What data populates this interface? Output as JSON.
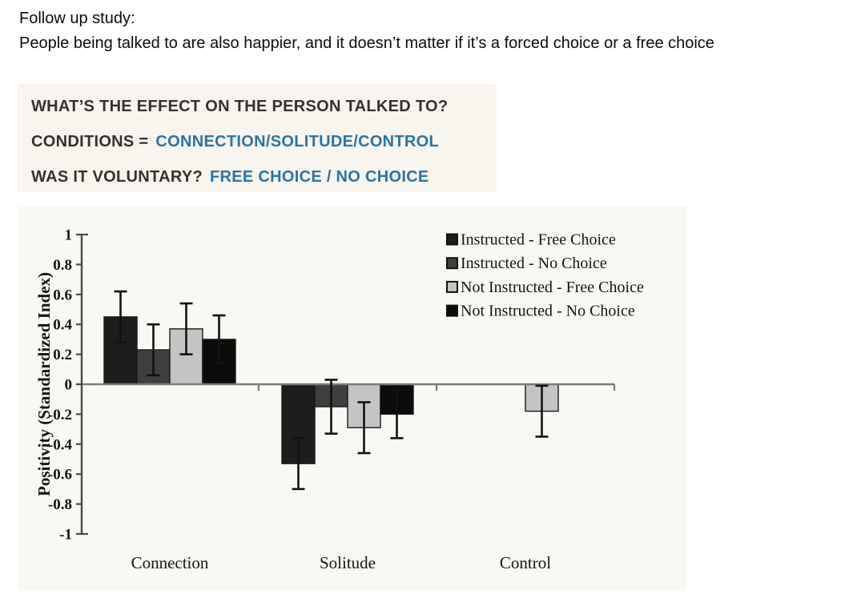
{
  "intro": {
    "line1": "Follow up study:",
    "line2": "People being talked to are also happier, and it doesn’t matter if it’s a forced choice or a free choice"
  },
  "info_box": {
    "line1_dark": "WHAT’S THE EFFECT ON THE PERSON TALKED TO?",
    "line2_dark": "CONDITIONS =",
    "line2_blue": "CONNECTION/SOLITUDE/CONTROL",
    "line3_dark": "WAS IT VOLUNTARY?",
    "line3_blue": "FREE CHOICE / NO CHOICE"
  },
  "colors": {
    "accent_blue": "#2d73a7",
    "dark_text": "#35312c",
    "info_box_bg": "#f8f5ee",
    "chart_bg": "#faf8f2",
    "axis_color": "#4b4946",
    "baseline_color": "#7d7b76",
    "error_bar_color": "#14110f",
    "chart_text": "#181512"
  },
  "chart_data": {
    "type": "bar",
    "title": "",
    "xlabel": "",
    "ylabel": "Positivity (Standardized Index)",
    "ylim": [
      -1,
      1
    ],
    "ytick_step": 0.2,
    "ytick_labels": [
      "1",
      "0.8",
      "0.6",
      "0.4",
      "0.2",
      "0",
      "-0.2",
      "-0.4",
      "-0.6",
      "-0.8",
      "-1"
    ],
    "grid": false,
    "legend_position": "top-right",
    "categories": [
      "Connection",
      "Solitude",
      "Control"
    ],
    "series": [
      {
        "name": "Instructed - Free Choice",
        "color": "#1e1c1d",
        "values": [
          0.45,
          -0.53,
          null
        ],
        "errors": [
          0.17,
          0.17,
          null
        ]
      },
      {
        "name": "Instructed - No Choice",
        "color": "#403e3f",
        "values": [
          0.23,
          -0.15,
          null
        ],
        "errors": [
          0.17,
          0.18,
          null
        ]
      },
      {
        "name": "Not Instructed - Free Choice",
        "color": "#c5c4c5",
        "values": [
          0.37,
          -0.29,
          -0.18
        ],
        "errors": [
          0.17,
          0.17,
          0.17
        ]
      },
      {
        "name": "Not Instructed - No Choice",
        "color": "#0c0a0b",
        "values": [
          0.3,
          -0.2,
          null
        ],
        "errors": [
          0.16,
          0.16,
          null
        ]
      }
    ]
  }
}
